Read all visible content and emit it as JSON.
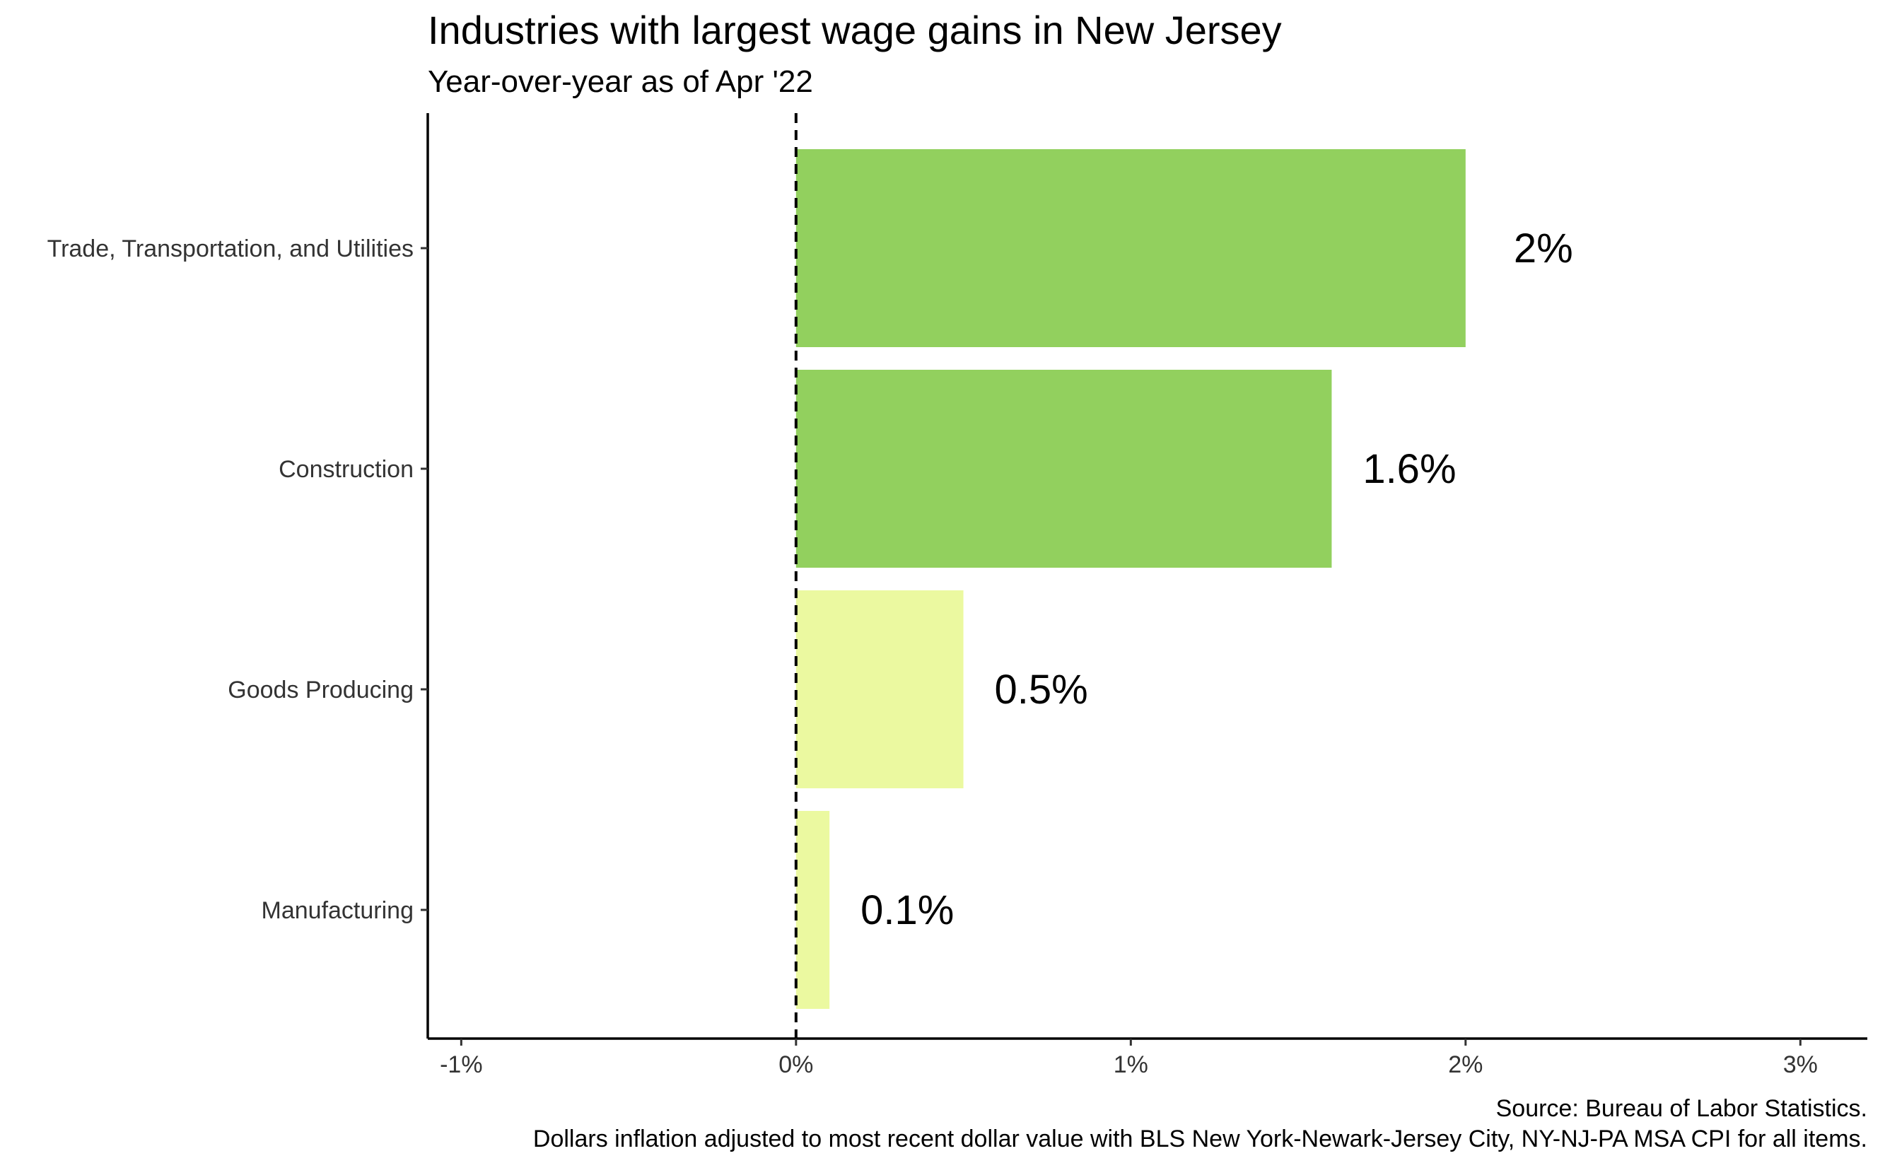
{
  "chart_data": {
    "type": "bar",
    "orientation": "horizontal",
    "title": "Industries with largest wage gains in New Jersey",
    "subtitle": "Year-over-year as of Apr '22",
    "categories": [
      "Trade, Transportation, and Utilities",
      "Construction",
      "Goods Producing",
      "Manufacturing"
    ],
    "values": [
      2.0,
      1.6,
      0.5,
      0.1
    ],
    "data_labels": [
      "2%",
      "1.6%",
      "0.5%",
      "0.1%"
    ],
    "bar_colors": [
      "#92d05e",
      "#92d05e",
      "#ebf9a0",
      "#ebf9a0"
    ],
    "xlim": [
      -1.1,
      3.2
    ],
    "x_ticks": [
      -1,
      0,
      1,
      2,
      3
    ],
    "x_tick_labels": [
      "-1%",
      "0%",
      "1%",
      "2%",
      "3%"
    ],
    "reference_line": {
      "x": 0,
      "style": "dashed"
    },
    "xlabel": "",
    "ylabel": "",
    "grid": false,
    "legend": "none",
    "caption": [
      "Source: Bureau of Labor Statistics.",
      "Dollars inflation adjusted to most recent dollar value with BLS New York-Newark-Jersey City, NY-NJ-PA MSA CPI for all items."
    ]
  }
}
